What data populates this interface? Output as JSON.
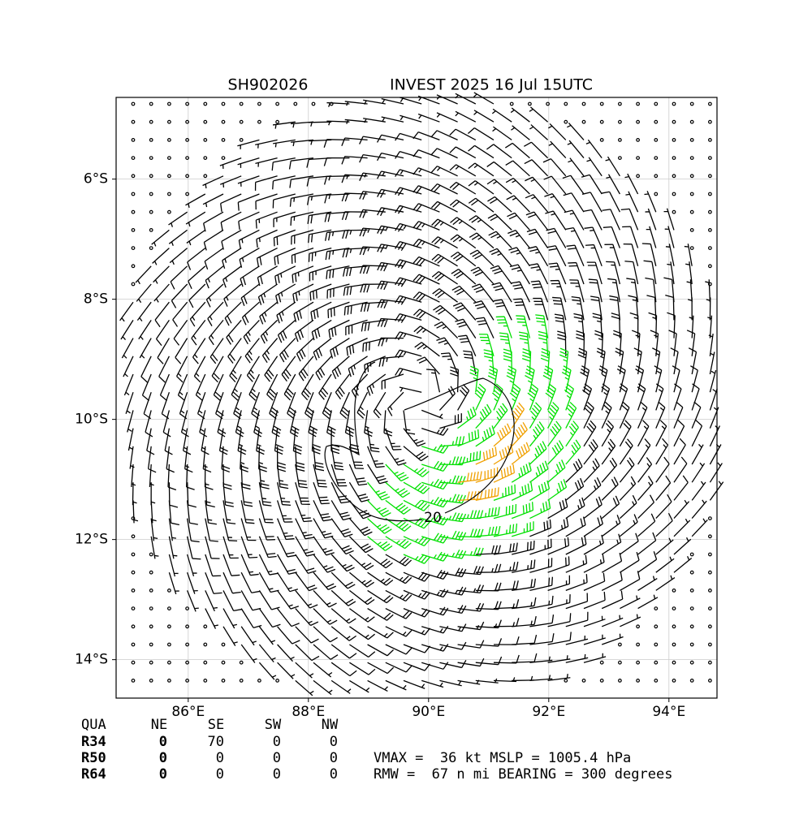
{
  "chart_data": {
    "type": "wind-barb-map",
    "title": [
      "SH902026",
      "INVEST 2025 16 Jul 15UTC"
    ],
    "xlim": [
      84.8,
      94.8
    ],
    "ylim": [
      -14.64,
      -4.64
    ],
    "xticks": [
      {
        "value": 86,
        "label": "86°E"
      },
      {
        "value": 88,
        "label": "88°E"
      },
      {
        "value": 90,
        "label": "90°E"
      },
      {
        "value": 92,
        "label": "92°E"
      },
      {
        "value": 94,
        "label": "94°E"
      }
    ],
    "yticks": [
      {
        "value": -6,
        "label": "6°S"
      },
      {
        "value": -8,
        "label": "8°S"
      },
      {
        "value": -10,
        "label": "10°S"
      },
      {
        "value": -12,
        "label": "12°S"
      },
      {
        "value": -14,
        "label": "14°S"
      }
    ],
    "grid": true,
    "contour_label": "20"
  },
  "table": {
    "header": [
      "QUA",
      "NE",
      "SE",
      "SW",
      "NW"
    ],
    "rows": [
      [
        "R34",
        0,
        70,
        0,
        0
      ],
      [
        "R50",
        0,
        0,
        0,
        0
      ],
      [
        "R64",
        0,
        0,
        0,
        0
      ]
    ]
  },
  "summary": [
    "VMAX =  36 kt MSLP = 1005.4 hPa",
    "RMW =  67 n mi BEARING = 300 degrees"
  ]
}
